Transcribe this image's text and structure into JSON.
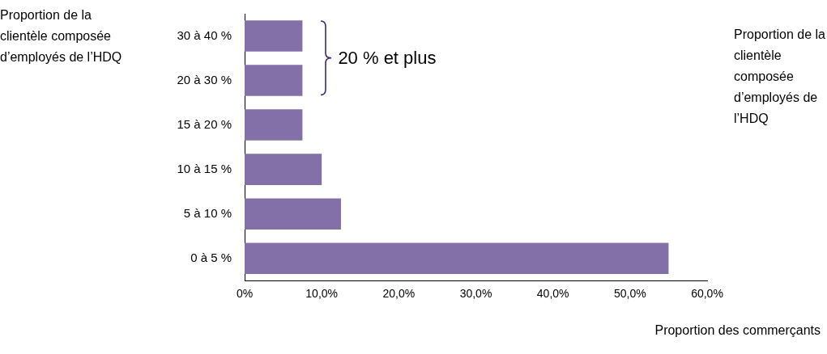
{
  "chart_data": {
    "type": "bar",
    "orientation": "horizontal",
    "ylabel": "Proportion de la clientèle composée d’employés de l’HDQ",
    "xlabel": "Proportion des commerçants",
    "categories": [
      "30 à 40 %",
      "20 à 30 %",
      "15 à 20 %",
      "10 à 15 %",
      "5 à 10 %",
      "0 à 5 %"
    ],
    "values": [
      7.5,
      7.5,
      7.5,
      10,
      12.5,
      55
    ],
    "color": "#8470a8",
    "xlim": [
      0,
      60
    ],
    "xticks": [
      {
        "value": 0,
        "label": "0%"
      },
      {
        "value": 10,
        "label": "10,0%"
      },
      {
        "value": 20,
        "label": "20,0%"
      },
      {
        "value": 30,
        "label": "30,0%"
      },
      {
        "value": 40,
        "label": "40,0%"
      },
      {
        "value": 50,
        "label": "50,0%"
      },
      {
        "value": 60,
        "label": "60,0%"
      }
    ],
    "grid": false,
    "legend": false,
    "annotations": [
      "20 % et plus",
      "Proportion de la clientèle composée d’employés de l’HDQ"
    ]
  }
}
